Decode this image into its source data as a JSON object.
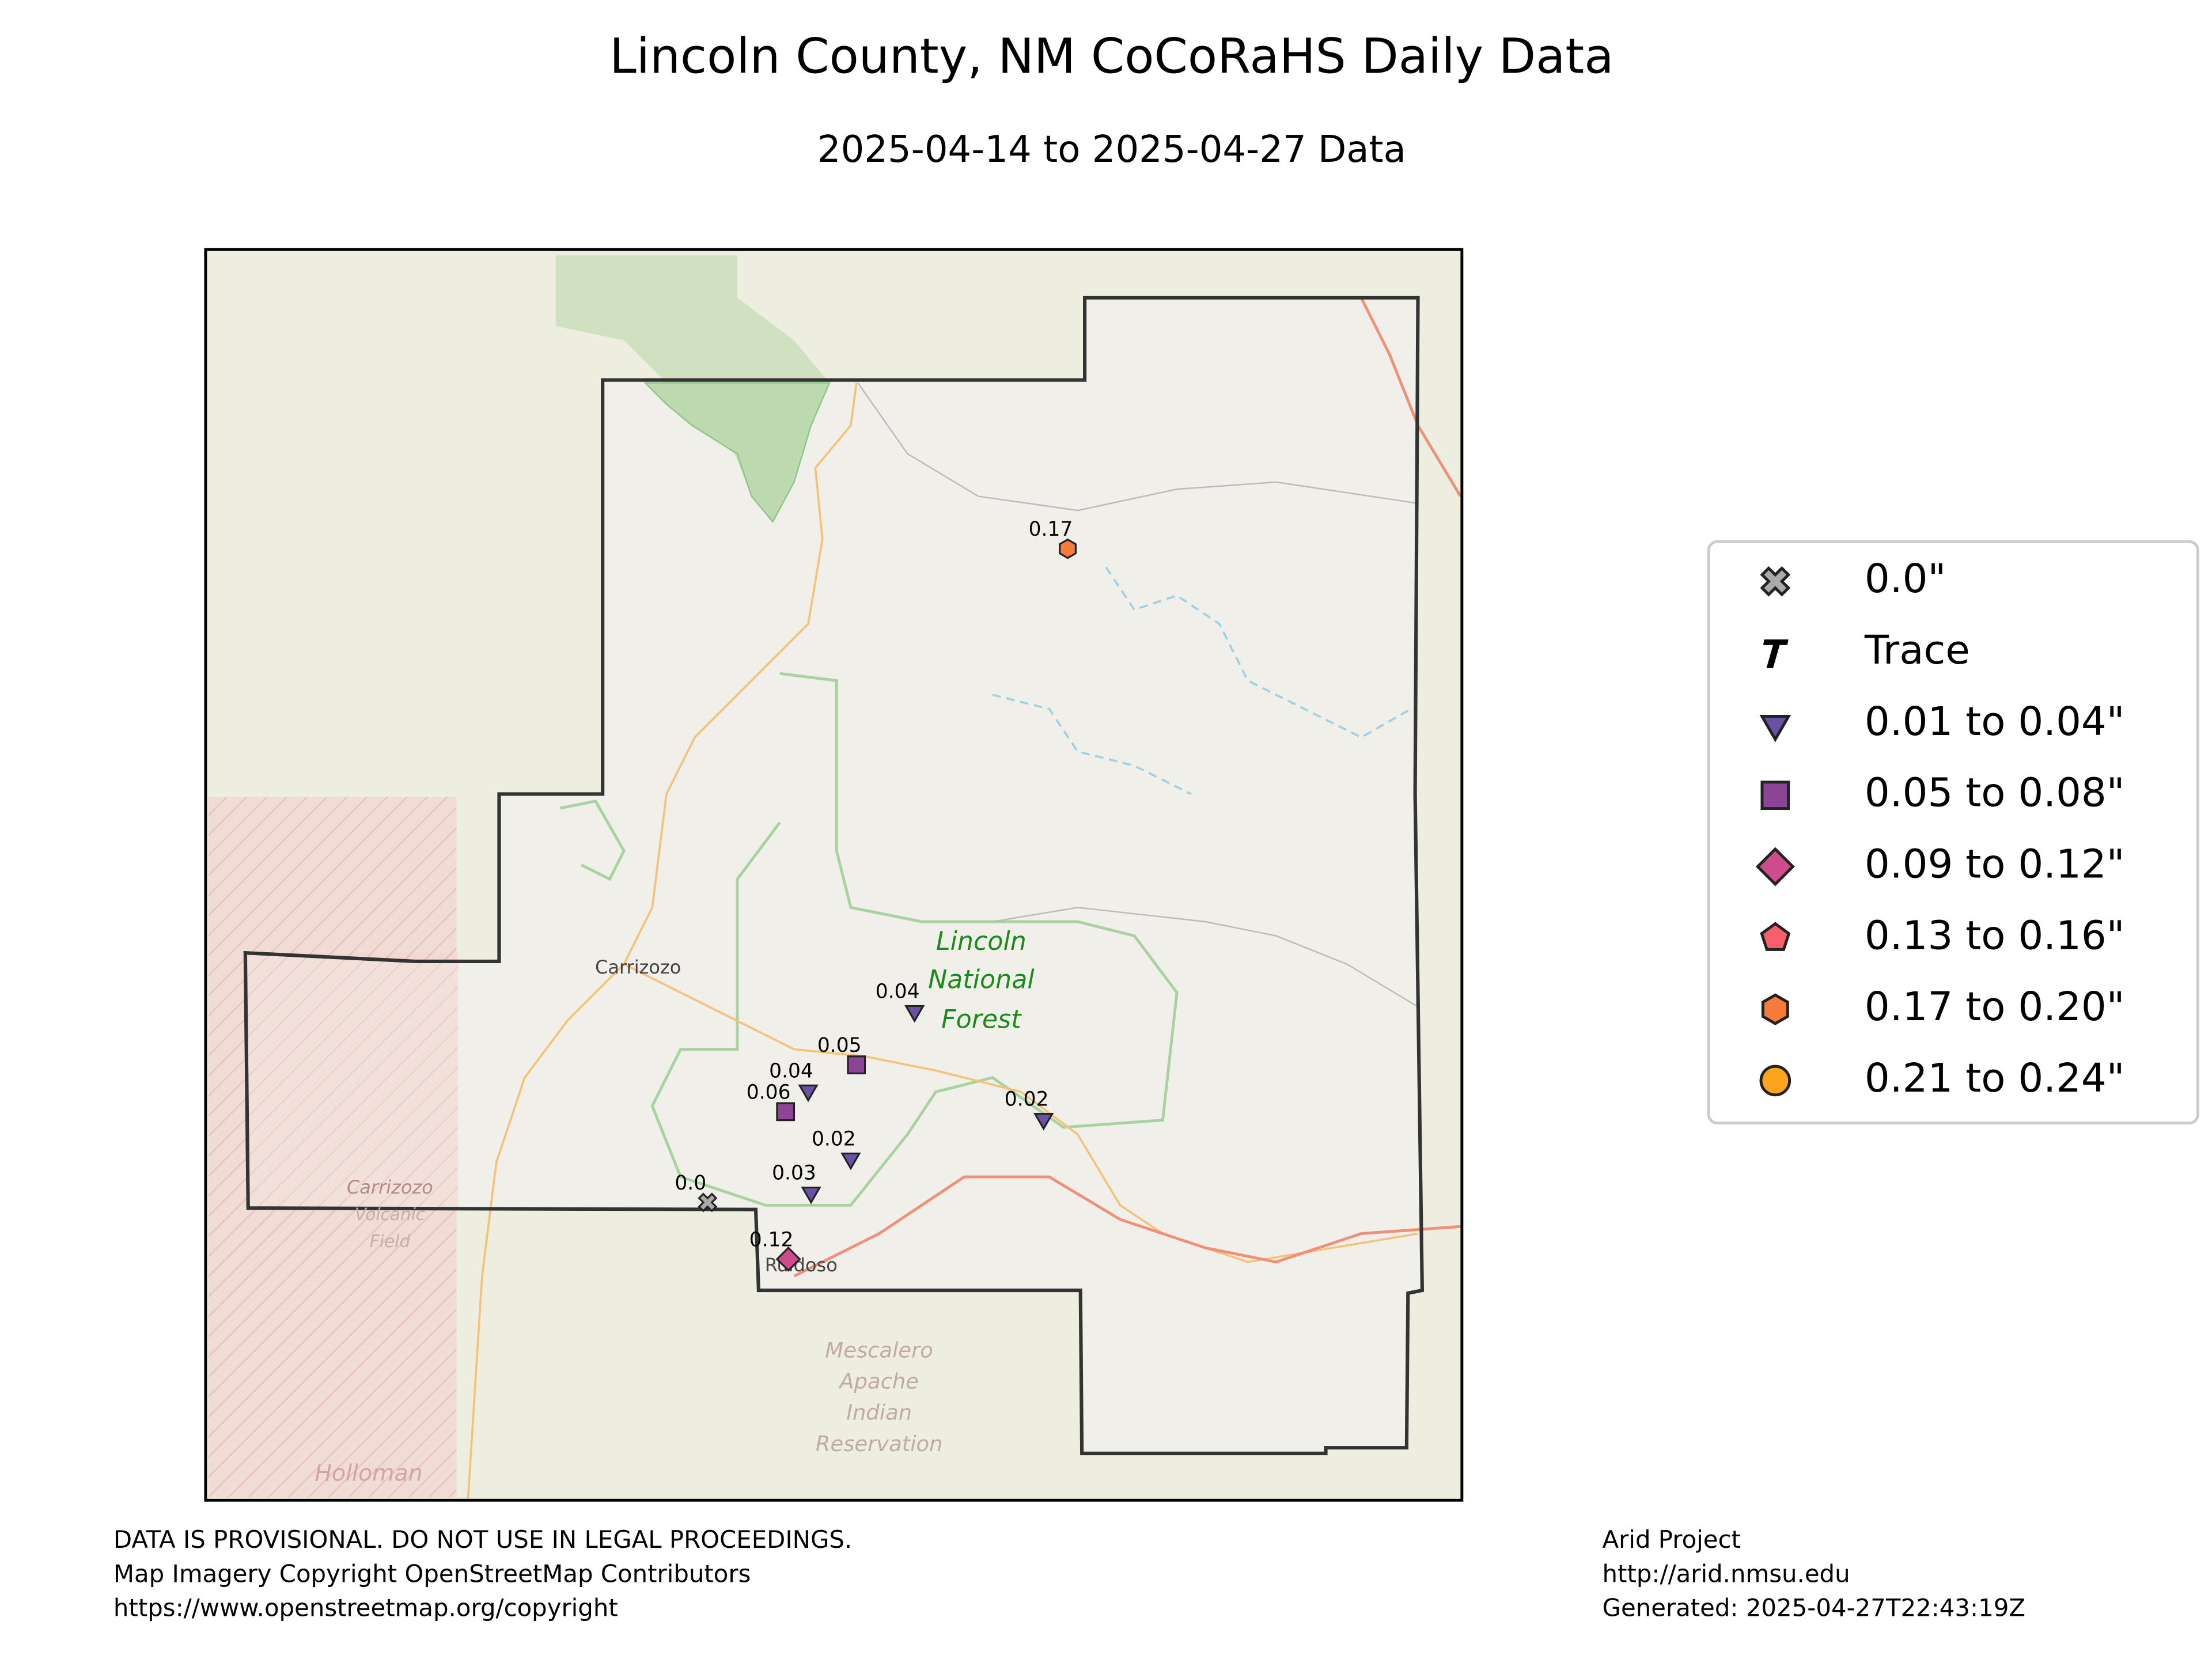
{
  "header": {
    "title": "Lincoln County, NM CoCoRaHS Daily Data",
    "subtitle": "2025-04-14 to 2025-04-27 Data"
  },
  "legend": [
    "0.0\"",
    "Trace",
    "0.01 to 0.04\"",
    "0.05 to 0.08\"",
    "0.09 to 0.12\"",
    "0.13 to 0.16\"",
    "0.17 to 0.20\"",
    "0.21 to 0.24\""
  ],
  "stations": [
    "0.17",
    "0.04",
    "0.05",
    "0.04",
    "0.06",
    "0.02",
    "0.02",
    "0.03",
    "0.0",
    "0.12"
  ],
  "map_labels": [
    "Carrizozo",
    "Lincoln",
    "National",
    "Forest",
    "Ruidoso",
    "Carrizozo",
    "Volcanic",
    "Field",
    "Mescalero",
    "Apache",
    "Indian",
    "Reservation",
    "Holloman"
  ],
  "footer": {
    "left": [
      "DATA IS PROVISIONAL. DO NOT USE IN LEGAL PROCEEDINGS.",
      "Map Imagery Copyright OpenStreetMap Contributors",
      "https://www.openstreetmap.org/copyright"
    ],
    "right": [
      "Arid Project",
      "http://arid.nmsu.edu",
      "Generated: 2025-04-27T22:43:19Z"
    ]
  }
}
